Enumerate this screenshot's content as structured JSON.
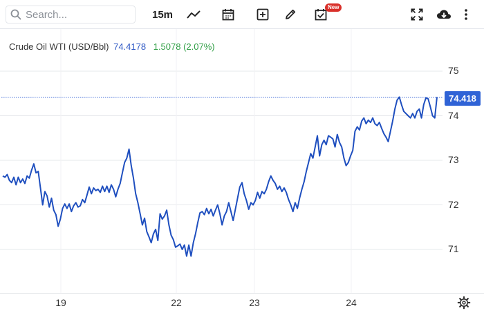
{
  "toolbar": {
    "search_placeholder": "Search...",
    "interval": "15m",
    "new_badge": "New",
    "icons": [
      "search-icon",
      "line-chart-icon",
      "calendar-icon",
      "add-box-icon",
      "pencil-icon",
      "checklist-icon",
      "fullscreen-icon",
      "cloud-download-icon",
      "more-vertical-icon"
    ]
  },
  "legend": {
    "symbol": "Crude Oil WTI (USD/Bbl)",
    "price": "74.4178",
    "change": "1.5078 (2.07%)"
  },
  "price_label": "74.418",
  "colors": {
    "line": "#1f4fbf",
    "accent": "#2f63d6",
    "positive": "#2f9e44",
    "badge": "#d9302a",
    "grid": "#e6e8eb"
  },
  "chart_data": {
    "type": "line",
    "title": "Crude Oil WTI (USD/Bbl)",
    "ylim": [
      70.4,
      75.6
    ],
    "y_ticks": [
      "75",
      "74",
      "73",
      "72",
      "71"
    ],
    "x_ticks": [
      "19",
      "22",
      "23",
      "24"
    ],
    "last_value": 74.4178,
    "series": [
      {
        "name": "Crude Oil WTI (USD/Bbl)",
        "values": [
          72.65,
          72.62,
          72.68,
          72.55,
          72.5,
          72.62,
          72.45,
          72.62,
          72.5,
          72.58,
          72.48,
          72.65,
          72.6,
          72.78,
          72.92,
          72.72,
          72.75,
          72.38,
          72.0,
          72.3,
          72.2,
          71.95,
          72.15,
          71.88,
          71.78,
          71.52,
          71.68,
          71.92,
          72.02,
          71.92,
          72.02,
          71.85,
          71.98,
          72.05,
          71.95,
          71.98,
          72.12,
          72.05,
          72.22,
          72.4,
          72.25,
          72.38,
          72.32,
          72.35,
          72.28,
          72.42,
          72.3,
          72.42,
          72.28,
          72.45,
          72.35,
          72.18,
          72.35,
          72.48,
          72.72,
          72.95,
          73.05,
          73.25,
          72.88,
          72.6,
          72.25,
          72.05,
          71.8,
          71.55,
          71.7,
          71.4,
          71.28,
          71.15,
          71.35,
          71.45,
          71.2,
          71.8,
          71.68,
          71.75,
          71.88,
          71.55,
          71.32,
          71.22,
          71.05,
          71.08,
          71.12,
          71.0,
          71.1,
          70.85,
          71.1,
          70.85,
          71.15,
          71.35,
          71.6,
          71.82,
          71.85,
          71.78,
          71.92,
          71.8,
          71.9,
          71.75,
          71.88,
          72.0,
          71.8,
          71.55,
          71.75,
          71.85,
          72.05,
          71.85,
          71.65,
          71.9,
          72.15,
          72.4,
          72.5,
          72.25,
          72.1,
          71.9,
          72.05,
          72.0,
          72.1,
          72.28,
          72.15,
          72.3,
          72.25,
          72.35,
          72.52,
          72.65,
          72.55,
          72.48,
          72.35,
          72.42,
          72.3,
          72.38,
          72.28,
          72.12,
          72.0,
          71.85,
          72.05,
          71.92,
          72.15,
          72.35,
          72.52,
          72.75,
          72.95,
          73.15,
          73.05,
          73.3,
          73.55,
          73.1,
          73.35,
          73.45,
          73.35,
          73.55,
          73.52,
          73.48,
          73.3,
          73.58,
          73.4,
          73.3,
          73.05,
          72.88,
          72.95,
          73.1,
          73.22,
          73.65,
          73.75,
          73.68,
          73.88,
          73.95,
          73.82,
          73.9,
          73.85,
          73.95,
          73.82,
          73.78,
          73.85,
          73.72,
          73.6,
          73.52,
          73.42,
          73.65,
          73.88,
          74.15,
          74.35,
          74.42,
          74.25,
          74.1,
          74.05,
          74.0,
          73.95,
          74.05,
          73.95,
          74.1,
          74.15,
          73.95,
          74.25,
          74.4,
          74.38,
          74.2,
          74.0,
          73.95,
          74.42
        ]
      }
    ]
  }
}
